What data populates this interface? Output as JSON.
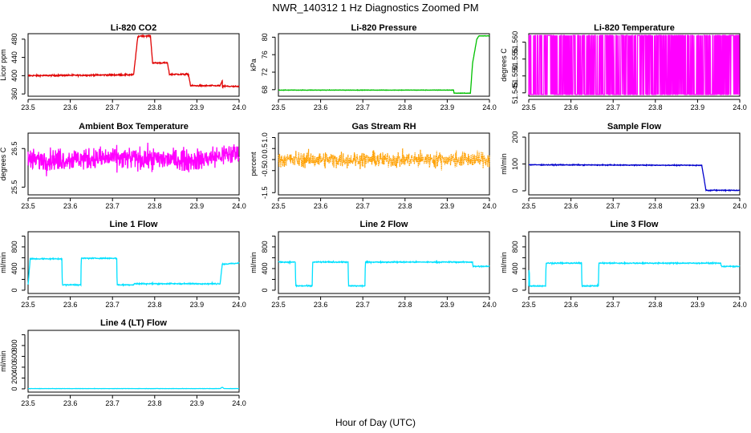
{
  "figure": {
    "title": "NWR_140312  1 Hz Diagnostics Zoomed PM",
    "xlabel": "Hour of Day (UTC)"
  },
  "chart_data": [
    {
      "type": "line",
      "title": "Li-820 CO2",
      "ylabel": "Licor ppm",
      "color": "#e00000",
      "xlim": [
        23.5,
        24.0
      ],
      "ylim": [
        355,
        492
      ],
      "yticks": [
        360,
        400,
        440,
        480
      ],
      "xticks": [
        23.5,
        23.6,
        23.7,
        23.8,
        23.9,
        24.0
      ],
      "noise": 1.5,
      "x": [
        23.5,
        23.75,
        23.76,
        23.765,
        23.79,
        23.795,
        23.83,
        23.835,
        23.88,
        23.885,
        23.955,
        23.96,
        23.961,
        23.962,
        23.963,
        24.0
      ],
      "y": [
        400,
        402,
        485,
        487,
        487,
        428,
        428,
        403,
        403,
        378,
        378,
        388,
        370,
        378,
        377,
        376
      ]
    },
    {
      "type": "line",
      "title": "Li-820 Pressure",
      "ylabel": "kPa",
      "color": "#00c000",
      "xlim": [
        23.5,
        24.0
      ],
      "ylim": [
        66.5,
        80.8
      ],
      "yticks": [
        68,
        72,
        76,
        80
      ],
      "xticks": [
        23.5,
        23.6,
        23.7,
        23.8,
        23.9,
        24.0
      ],
      "noise": 0.05,
      "x": [
        23.5,
        23.915,
        23.916,
        23.955,
        23.96,
        23.97,
        23.975,
        24.0
      ],
      "y": [
        67.9,
        67.9,
        67.2,
        67.2,
        74,
        79.5,
        80.3,
        80.3
      ]
    },
    {
      "type": "line",
      "title": "Li-820 Temperature",
      "ylabel": "degrees C",
      "color": "#ff00ff",
      "xlim": [
        23.5,
        24.0
      ],
      "ylim": [
        51.544,
        51.5625
      ],
      "yticks": [
        51.545,
        51.55,
        51.555,
        51.56
      ],
      "ytick_labels": [
        "51.545",
        "51.550",
        "51.555",
        "51.560"
      ],
      "xticks": [
        23.5,
        23.6,
        23.7,
        23.8,
        23.9,
        24.0
      ],
      "binary": true,
      "x": [
        23.5,
        24.0
      ],
      "y": [
        51.5445,
        51.562
      ]
    },
    {
      "type": "line",
      "title": "Ambient Box Temperature",
      "ylabel": "degrees C",
      "color": "#ff00ff",
      "xlim": [
        23.5,
        24.0
      ],
      "ylim": [
        25.3,
        26.9
      ],
      "yticks": [
        25.5,
        26.5
      ],
      "ytick_labels": [
        "25.5",
        "26.5"
      ],
      "xticks": [
        23.5,
        23.6,
        23.7,
        23.8,
        23.9,
        24.0
      ],
      "noise": 0.28,
      "x": [
        23.5,
        23.7,
        23.9,
        24.0
      ],
      "y": [
        26.2,
        26.25,
        26.2,
        26.4
      ]
    },
    {
      "type": "line",
      "title": "Gas Stream RH",
      "ylabel": "percent",
      "color": "#ffa000",
      "xlim": [
        23.5,
        24.0
      ],
      "ylim": [
        -1.6,
        1.2
      ],
      "yticks": [
        -1.5,
        -0.5,
        0.0,
        0.5,
        1.0
      ],
      "ytick_labels": [
        "-1.5",
        "-0.5",
        "0.0",
        "0.5",
        "1.0"
      ],
      "xticks": [
        23.5,
        23.6,
        23.7,
        23.8,
        23.9,
        24.0
      ],
      "noise": 0.35,
      "dotted": true,
      "x": [
        23.5,
        24.0
      ],
      "y": [
        0.0,
        0.0
      ]
    },
    {
      "type": "line",
      "title": "Sample Flow",
      "ylabel": "ml/min",
      "color": "#0000cc",
      "xlim": [
        23.5,
        24.0
      ],
      "ylim": [
        -15,
        215
      ],
      "yticks": [
        0,
        100,
        200
      ],
      "xticks": [
        23.5,
        23.6,
        23.7,
        23.8,
        23.9,
        24.0
      ],
      "noise": 1.5,
      "x": [
        23.5,
        23.91,
        23.92,
        24.0
      ],
      "y": [
        97,
        95,
        2,
        2
      ]
    },
    {
      "type": "line",
      "title": "Line 1 Flow",
      "ylabel": "ml/min",
      "color": "#00e0ff",
      "xlim": [
        23.5,
        24.0
      ],
      "ylim": [
        -60,
        1080
      ],
      "yticks": [
        0,
        200,
        400,
        600,
        800,
        1000
      ],
      "ytick_labels": [
        "0",
        "400",
        "800"
      ],
      "ytick_label_values": [
        0,
        400,
        800
      ],
      "xticks": [
        23.5,
        23.6,
        23.7,
        23.8,
        23.9,
        24.0
      ],
      "noise": 10,
      "x": [
        23.5,
        23.505,
        23.58,
        23.581,
        23.625,
        23.626,
        23.71,
        23.711,
        23.75,
        23.751,
        23.955,
        23.96,
        24.0
      ],
      "y": [
        100,
        580,
        580,
        100,
        100,
        590,
        590,
        100,
        100,
        120,
        120,
        480,
        500
      ]
    },
    {
      "type": "line",
      "title": "Line 2 Flow",
      "ylabel": "ml/min",
      "color": "#00e0ff",
      "xlim": [
        23.5,
        24.0
      ],
      "ylim": [
        -60,
        1080
      ],
      "yticks": [
        0,
        200,
        400,
        600,
        800,
        1000
      ],
      "ytick_labels": [
        "0",
        "400",
        "800"
      ],
      "ytick_label_values": [
        0,
        400,
        800
      ],
      "xticks": [
        23.5,
        23.6,
        23.7,
        23.8,
        23.9,
        24.0
      ],
      "noise": 10,
      "x": [
        23.5,
        23.54,
        23.541,
        23.58,
        23.581,
        23.665,
        23.666,
        23.705,
        23.706,
        23.96,
        23.961,
        24.0
      ],
      "y": [
        520,
        520,
        80,
        80,
        520,
        520,
        80,
        80,
        520,
        520,
        440,
        440
      ]
    },
    {
      "type": "line",
      "title": "Line 3 Flow",
      "ylabel": "ml/min",
      "color": "#00e0ff",
      "xlim": [
        23.5,
        24.0
      ],
      "ylim": [
        -60,
        1080
      ],
      "yticks": [
        0,
        200,
        400,
        600,
        800,
        1000
      ],
      "ytick_labels": [
        "0",
        "400",
        "800"
      ],
      "ytick_label_values": [
        0,
        400,
        800
      ],
      "xticks": [
        23.5,
        23.6,
        23.7,
        23.8,
        23.9,
        24.0
      ],
      "noise": 10,
      "x": [
        23.5,
        23.501,
        23.502,
        23.54,
        23.541,
        23.625,
        23.626,
        23.665,
        23.666,
        23.955,
        23.956,
        24.0
      ],
      "y": [
        80,
        480,
        80,
        80,
        500,
        500,
        80,
        80,
        500,
        500,
        440,
        440
      ]
    },
    {
      "type": "line",
      "title": "Line 4 (LT) Flow",
      "ylabel": "ml/min",
      "color": "#00e0ff",
      "xlim": [
        23.5,
        24.0
      ],
      "ylim": [
        -60,
        1080
      ],
      "yticks": [
        0,
        200,
        400,
        600,
        800,
        1000
      ],
      "ytick_labels": [
        "0",
        "200",
        "400",
        "600",
        "800"
      ],
      "ytick_label_values": [
        0,
        200,
        400,
        600,
        800
      ],
      "xticks": [
        23.5,
        23.6,
        23.7,
        23.8,
        23.9,
        24.0
      ],
      "noise": 2,
      "x": [
        23.5,
        23.955,
        23.96,
        23.965,
        24.0
      ],
      "y": [
        5,
        5,
        30,
        5,
        5
      ]
    }
  ]
}
